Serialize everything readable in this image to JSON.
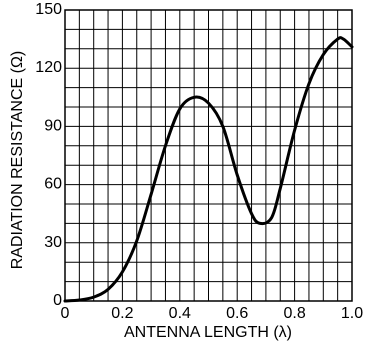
{
  "chart_data": {
    "type": "line",
    "title": "",
    "xlabel": "ANTENNA LENGTH (λ)",
    "ylabel": "RADIATION RESISTANCE (Ω)",
    "xlim": [
      0,
      1.0
    ],
    "ylim": [
      0,
      150
    ],
    "grid": true,
    "x_ticks": [
      0,
      0.2,
      0.4,
      0.6,
      0.8,
      1.0
    ],
    "x_tick_labels": [
      "0",
      "0.2",
      "0.4",
      "0.6",
      "0.8",
      "1.0"
    ],
    "y_ticks": [
      0,
      30,
      60,
      90,
      120,
      150
    ],
    "y_tick_labels": [
      "0",
      "30",
      "60",
      "90",
      "120",
      "150"
    ],
    "x_minor_step": 0.05,
    "y_minor_step": 10,
    "colors": {
      "line": "#000000",
      "grid": "#000000",
      "background": "#ffffff"
    },
    "series": [
      {
        "x": [
          0.0,
          0.05,
          0.1,
          0.15,
          0.2,
          0.25,
          0.3,
          0.35,
          0.4,
          0.45,
          0.5,
          0.55,
          0.6,
          0.65,
          0.68,
          0.72,
          0.75,
          0.8,
          0.85,
          0.9,
          0.95,
          0.97,
          1.0
        ],
        "y": [
          0,
          0.5,
          2,
          6,
          15,
          31,
          55,
          80,
          99,
          105,
          102,
          90,
          65,
          45,
          40,
          43,
          58,
          88,
          112,
          127,
          135,
          135,
          131
        ]
      }
    ]
  }
}
